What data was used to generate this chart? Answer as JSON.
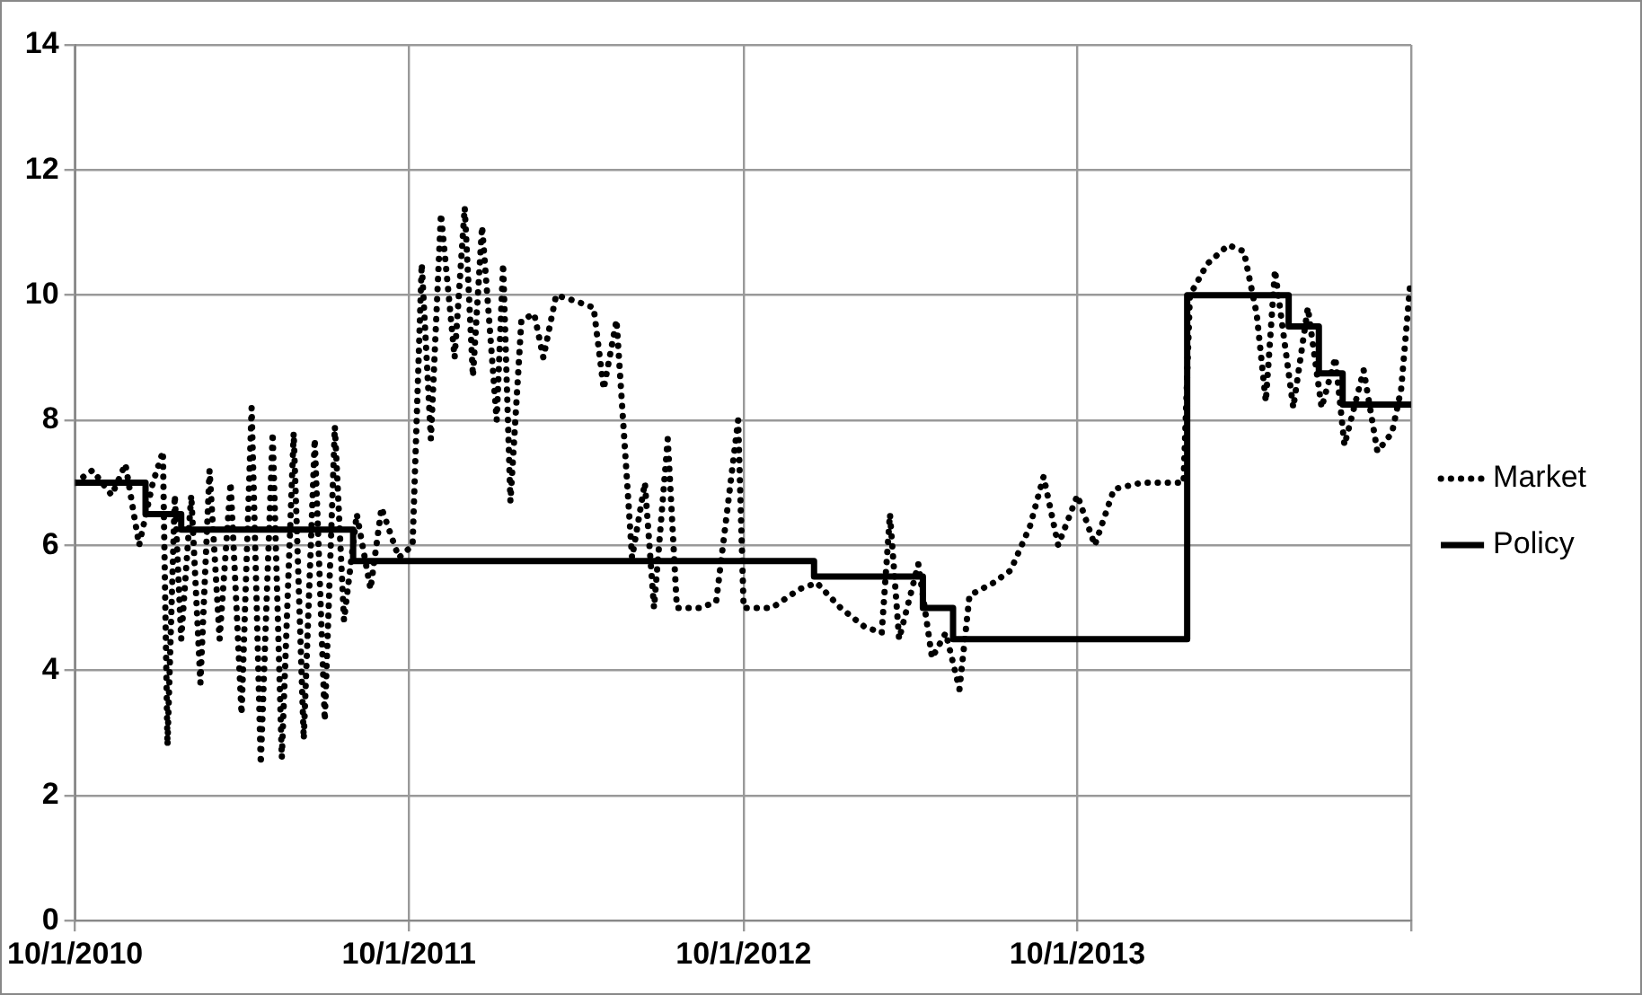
{
  "chart_data": {
    "type": "line",
    "xlim": [
      "2010-10-01",
      "2014-10-01"
    ],
    "xticks": [
      {
        "value": "2010-10-01",
        "label": "10/1/2010"
      },
      {
        "value": "2011-10-01",
        "label": "10/1/2011"
      },
      {
        "value": "2012-10-01",
        "label": "10/1/2012"
      },
      {
        "value": "2013-10-01",
        "label": "10/1/2013"
      },
      {
        "value": "2014-10-01",
        "label": null
      }
    ],
    "ylim": [
      0,
      14
    ],
    "yticks": [
      0,
      2,
      4,
      6,
      8,
      10,
      12,
      14
    ],
    "grid": true,
    "legend": "right",
    "marker": "none",
    "series": [
      {
        "name": "Market",
        "type": "line",
        "color": "#000000",
        "line_style": "dotted",
        "x": [
          "2010-10-01",
          "2010-10-20",
          "2010-11-10",
          "2010-11-25",
          "2010-12-10",
          "2010-12-25",
          "2011-01-05",
          "2011-01-10",
          "2011-01-18",
          "2011-01-25",
          "2011-02-05",
          "2011-02-15",
          "2011-02-25",
          "2011-03-08",
          "2011-03-20",
          "2011-04-01",
          "2011-04-12",
          "2011-04-22",
          "2011-05-05",
          "2011-05-15",
          "2011-05-28",
          "2011-06-08",
          "2011-06-20",
          "2011-07-01",
          "2011-07-12",
          "2011-07-22",
          "2011-08-05",
          "2011-08-20",
          "2011-09-01",
          "2011-09-20",
          "2011-10-05",
          "2011-10-15",
          "2011-10-25",
          "2011-11-05",
          "2011-11-20",
          "2011-12-01",
          "2011-12-10",
          "2011-12-20",
          "2012-01-05",
          "2012-01-12",
          "2012-01-20",
          "2012-02-01",
          "2012-02-15",
          "2012-02-25",
          "2012-03-10",
          "2012-04-01",
          "2012-04-20",
          "2012-05-01",
          "2012-05-15",
          "2012-06-01",
          "2012-06-15",
          "2012-06-25",
          "2012-07-10",
          "2012-07-20",
          "2012-08-15",
          "2012-09-01",
          "2012-09-25",
          "2012-10-01",
          "2012-11-01",
          "2012-12-01",
          "2012-12-20",
          "2013-01-15",
          "2013-02-10",
          "2013-03-01",
          "2013-03-10",
          "2013-03-20",
          "2013-04-10",
          "2013-04-25",
          "2013-05-10",
          "2013-05-25",
          "2013-06-05",
          "2013-07-01",
          "2013-07-20",
          "2013-08-10",
          "2013-08-25",
          "2013-09-10",
          "2013-10-01",
          "2013-10-20",
          "2013-11-10",
          "2013-12-10",
          "2014-01-25",
          "2014-02-01",
          "2014-02-20",
          "2014-03-15",
          "2014-04-01",
          "2014-04-15",
          "2014-04-25",
          "2014-05-05",
          "2014-05-25",
          "2014-06-10",
          "2014-06-25",
          "2014-07-10",
          "2014-07-20",
          "2014-08-10",
          "2014-08-25",
          "2014-09-10",
          "2014-09-20",
          "2014-09-30"
        ],
        "values": [
          7.0,
          7.2,
          6.8,
          7.3,
          6.0,
          7.0,
          7.5,
          2.8,
          6.8,
          4.5,
          6.8,
          3.8,
          7.2,
          4.5,
          7.0,
          3.3,
          8.2,
          2.5,
          7.8,
          2.6,
          7.8,
          2.9,
          7.7,
          3.2,
          7.9,
          4.8,
          6.5,
          5.3,
          6.6,
          5.8,
          6.0,
          10.5,
          7.7,
          11.3,
          9.0,
          11.4,
          8.7,
          11.1,
          8.0,
          10.5,
          6.7,
          9.6,
          9.7,
          9.0,
          10.0,
          9.9,
          9.8,
          8.5,
          9.6,
          5.8,
          7.0,
          5.0,
          7.7,
          5.0,
          5.0,
          5.1,
          8.0,
          5.0,
          5.0,
          5.3,
          5.4,
          5.0,
          4.7,
          4.6,
          6.5,
          4.5,
          5.7,
          4.2,
          4.6,
          3.7,
          5.2,
          5.4,
          5.6,
          6.3,
          7.1,
          6.0,
          6.8,
          6.0,
          6.9,
          7.0,
          7.0,
          10.0,
          10.5,
          10.8,
          10.7,
          9.7,
          8.3,
          10.4,
          8.2,
          9.8,
          8.2,
          9.0,
          7.6,
          8.8,
          7.5,
          7.8,
          8.5,
          10.2
        ]
      },
      {
        "name": "Policy",
        "type": "step",
        "color": "#000000",
        "line_style": "solid",
        "x": [
          "2010-10-01",
          "2010-12-17",
          "2011-01-25",
          "2011-08-01",
          "2012-12-17",
          "2013-04-15",
          "2013-05-18",
          "2014-01-29",
          "2014-05-20",
          "2014-06-22",
          "2014-07-18",
          "2014-10-01"
        ],
        "values": [
          7.0,
          6.5,
          6.25,
          5.75,
          5.5,
          5.0,
          4.5,
          10.0,
          9.5,
          8.75,
          8.25,
          8.25
        ]
      }
    ]
  }
}
